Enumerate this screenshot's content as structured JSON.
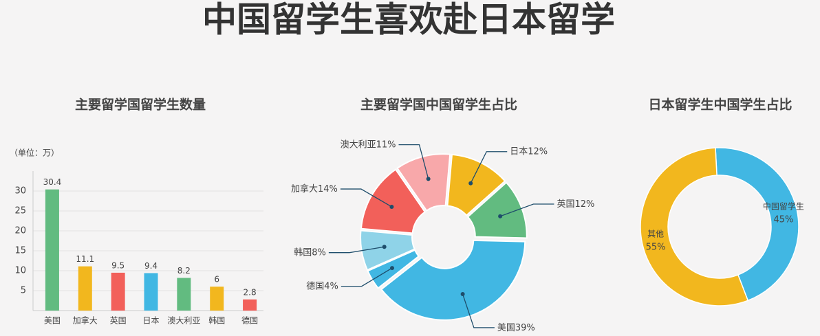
{
  "title": "中国留学生喜欢赴日本留学",
  "chart_data": [
    {
      "type": "bar",
      "title": "主要留学国留学生数量",
      "unit_label": "（单位：万）",
      "categories": [
        "美国",
        "加拿大",
        "英国",
        "日本",
        "澳大利亚",
        "韩国",
        "德国"
      ],
      "values": [
        30.4,
        11.1,
        9.5,
        9.4,
        8.2,
        6,
        2.8
      ],
      "colors": [
        "#62bb80",
        "#f2b71e",
        "#f2605a",
        "#41b7e3",
        "#62bb80",
        "#f2b71e",
        "#f2605a"
      ],
      "ylim": [
        0,
        35
      ],
      "yticks": [
        5,
        10,
        15,
        20,
        25,
        30
      ],
      "grid": true
    },
    {
      "type": "pie",
      "title": "主要留学国中国留学生占比",
      "categories": [
        "日本",
        "英国",
        "美国",
        "德国",
        "韩国",
        "加拿大",
        "澳大利亚"
      ],
      "values": [
        12,
        12,
        39,
        4,
        8,
        14,
        11
      ],
      "value_labels": [
        "12%",
        "12%",
        "39%",
        "4%",
        "8%",
        "14%",
        "11%"
      ],
      "colors": [
        "#f2b71e",
        "#62bb80",
        "#41b7e3",
        "#41b7e3",
        "#8fd3e8",
        "#f2605a",
        "#f8a8aa"
      ]
    },
    {
      "type": "donut",
      "title": "日本留学生中国学生占比",
      "categories": [
        "中国留学生",
        "其他"
      ],
      "values": [
        45,
        55
      ],
      "value_labels": [
        "45%",
        "55%"
      ],
      "colors": [
        "#41b7e3",
        "#f2b71e"
      ]
    }
  ]
}
